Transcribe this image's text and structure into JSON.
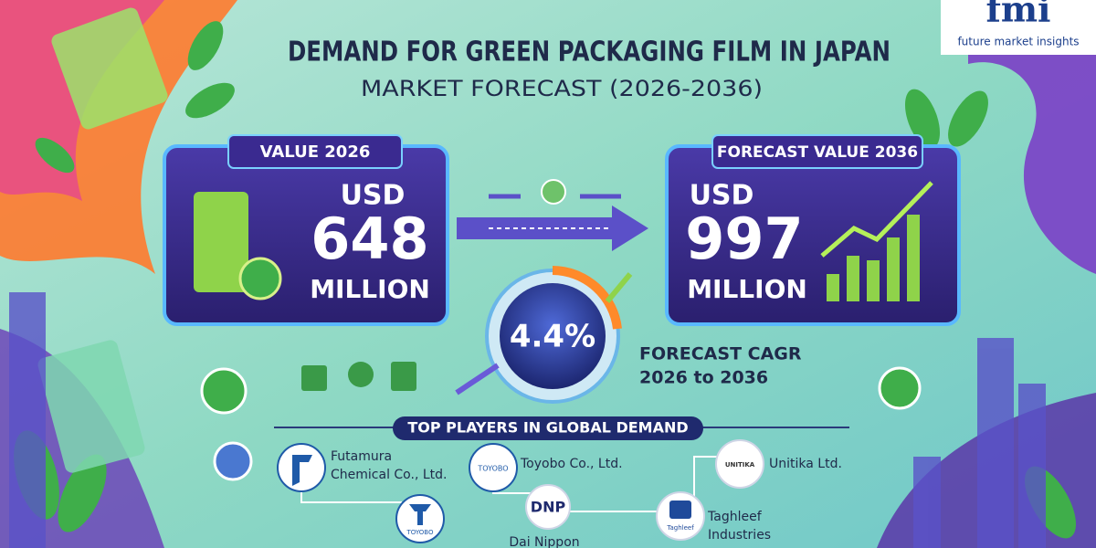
{
  "logo": {
    "mark": "fmi",
    "tagline": "future market insights"
  },
  "header": {
    "title": "DEMAND FOR GREEN PACKAGING FILM IN JAPAN",
    "subtitle": "MARKET FORECAST  (2026-2036)"
  },
  "value_2026": {
    "label": "VALUE 2026",
    "currency": "USD",
    "amount": "648",
    "unit": "MILLION"
  },
  "value_2036": {
    "label": "FORECAST VALUE 2036",
    "currency": "USD",
    "amount": "997",
    "unit": "MILLION"
  },
  "cagr": {
    "value": "4.4%",
    "label_lines": [
      "FORECAST CAGR",
      "2026 to 2036"
    ]
  },
  "players": {
    "title": "TOP PLAYERS IN GLOBAL DEMAND",
    "companies": [
      {
        "name_lines": [
          "Futamura",
          "Chemical Co., Ltd."
        ]
      },
      {
        "logo": "TOYOBO",
        "name_lines": [
          "Toyobo Co., Ltd."
        ]
      },
      {
        "logo": "UNITIKA",
        "name_lines": [
          "Unitika Ltd."
        ]
      },
      {
        "logo": "DNP",
        "name_lines": [
          "Dai Nippon"
        ]
      },
      {
        "logo": "Taghleef",
        "name_lines": [
          "Taghleef",
          "Industries"
        ]
      }
    ],
    "extra_logo": "TOYOBO"
  }
}
